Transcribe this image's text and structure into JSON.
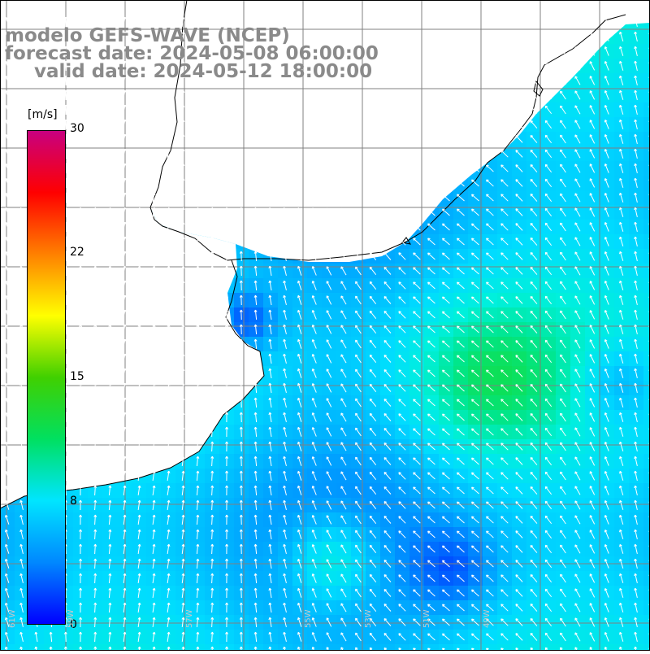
{
  "header": {
    "line1": "modelo GEFS-WAVE (NCEP)",
    "line2": "forecast date: 2024-05-08 06:00:00",
    "line3": "valid date: 2024-05-12 18:00:00"
  },
  "colorbar": {
    "unit": "[m/s]",
    "ticks": [
      "30",
      "22",
      "15",
      "8",
      "0"
    ],
    "colors": [
      "#0000ff",
      "#0088ff",
      "#00e5ff",
      "#00e060",
      "#40d000",
      "#ffff00",
      "#ff8000",
      "#ff0000",
      "#c80080"
    ]
  },
  "map": {
    "land_color": "#ffffff",
    "grid_color": "#808080",
    "lon_labels": [
      "61W",
      "59W",
      "57W",
      "55W",
      "53W",
      "51W",
      "49W"
    ]
  }
}
